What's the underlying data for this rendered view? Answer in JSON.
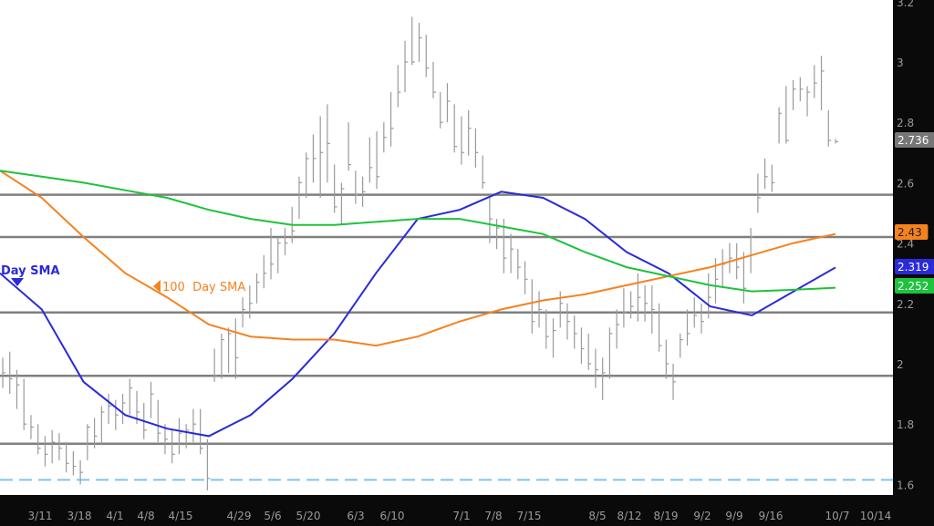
{
  "chart_data": {
    "type": "ohlc-bar",
    "title": "",
    "ylim": [
      1.55,
      3.2
    ],
    "y_ticks": [
      "3.2",
      "3",
      "2.8",
      "2.6",
      "2.4",
      "2.2",
      "2",
      "1.8",
      "1.6"
    ],
    "x_ticks": [
      "3/11",
      "3/18",
      "4/1",
      "4/8",
      "4/15",
      "4/29",
      "5/6",
      "5/20",
      "6/3",
      "6/10",
      "7/1",
      "7/8",
      "7/15",
      "8/5",
      "8/12",
      "8/19",
      "9/2",
      "9/9",
      "9/16",
      "10/7",
      "10/14"
    ],
    "grid": false,
    "bar_color": "#9a9a9a",
    "bars_hlc": [
      [
        2.02,
        1.92,
        1.97
      ],
      [
        2.04,
        1.9,
        1.95
      ],
      [
        1.98,
        1.85,
        1.93
      ],
      [
        1.95,
        1.78,
        1.8
      ],
      [
        1.83,
        1.75,
        1.79
      ],
      [
        1.8,
        1.7,
        1.72
      ],
      [
        1.76,
        1.66,
        1.7
      ],
      [
        1.78,
        1.67,
        1.74
      ],
      [
        1.77,
        1.68,
        1.72
      ],
      [
        1.74,
        1.64,
        1.67
      ],
      [
        1.71,
        1.63,
        1.66
      ],
      [
        1.68,
        1.6,
        1.64
      ],
      [
        1.8,
        1.68,
        1.79
      ],
      [
        1.82,
        1.72,
        1.76
      ],
      [
        1.86,
        1.73,
        1.84
      ],
      [
        1.9,
        1.8,
        1.86
      ],
      [
        1.88,
        1.78,
        1.83
      ],
      [
        1.9,
        1.8,
        1.87
      ],
      [
        1.95,
        1.83,
        1.92
      ],
      [
        1.91,
        1.8,
        1.84
      ],
      [
        1.87,
        1.75,
        1.78
      ],
      [
        1.94,
        1.82,
        1.9
      ],
      [
        1.88,
        1.74,
        1.77
      ],
      [
        1.8,
        1.7,
        1.75
      ],
      [
        1.78,
        1.67,
        1.7
      ],
      [
        1.82,
        1.7,
        1.77
      ],
      [
        1.8,
        1.72,
        1.78
      ],
      [
        1.85,
        1.74,
        1.8
      ],
      [
        1.85,
        1.7,
        1.72
      ],
      [
        1.75,
        1.58,
        1.62
      ],
      [
        2.05,
        1.94,
        1.96
      ],
      [
        2.1,
        1.95,
        2.08
      ],
      [
        2.12,
        1.97,
        2.1
      ],
      [
        2.15,
        1.95,
        2.02
      ],
      [
        2.22,
        2.12,
        2.18
      ],
      [
        2.26,
        2.15,
        2.2
      ],
      [
        2.3,
        2.2,
        2.27
      ],
      [
        2.36,
        2.25,
        2.3
      ],
      [
        2.45,
        2.28,
        2.33
      ],
      [
        2.42,
        2.3,
        2.4
      ],
      [
        2.45,
        2.36,
        2.4
      ],
      [
        2.52,
        2.4,
        2.44
      ],
      [
        2.62,
        2.48,
        2.6
      ],
      [
        2.7,
        2.55,
        2.68
      ],
      [
        2.76,
        2.6,
        2.68
      ],
      [
        2.82,
        2.55,
        2.7
      ],
      [
        2.86,
        2.6,
        2.73
      ],
      [
        2.66,
        2.5,
        2.52
      ],
      [
        2.6,
        2.46,
        2.58
      ],
      [
        2.8,
        2.64,
        2.66
      ],
      [
        2.64,
        2.53,
        2.56
      ],
      [
        2.62,
        2.52,
        2.57
      ],
      [
        2.75,
        2.6,
        2.65
      ],
      [
        2.77,
        2.58,
        2.62
      ],
      [
        2.8,
        2.7,
        2.75
      ],
      [
        2.9,
        2.72,
        2.78
      ],
      [
        2.99,
        2.85,
        2.9
      ],
      [
        3.07,
        2.9,
        3.0
      ],
      [
        3.15,
        2.99,
        3.0
      ],
      [
        3.13,
        3.0,
        3.08
      ],
      [
        3.09,
        2.95,
        2.98
      ],
      [
        3.0,
        2.88,
        2.9
      ],
      [
        2.9,
        2.78,
        2.8
      ],
      [
        2.93,
        2.8,
        2.87
      ],
      [
        2.86,
        2.7,
        2.72
      ],
      [
        2.82,
        2.66,
        2.7
      ],
      [
        2.84,
        2.69,
        2.78
      ],
      [
        2.78,
        2.65,
        2.7
      ],
      [
        2.69,
        2.58,
        2.6
      ],
      [
        2.56,
        2.4,
        2.48
      ],
      [
        2.48,
        2.38,
        2.45
      ],
      [
        2.48,
        2.3,
        2.35
      ],
      [
        2.43,
        2.3,
        2.38
      ],
      [
        2.38,
        2.28,
        2.32
      ],
      [
        2.34,
        2.23,
        2.28
      ],
      [
        2.28,
        2.1,
        2.14
      ],
      [
        2.24,
        2.12,
        2.18
      ],
      [
        2.18,
        2.05,
        2.09
      ],
      [
        2.15,
        2.02,
        2.11
      ],
      [
        2.24,
        2.12,
        2.2
      ],
      [
        2.2,
        2.08,
        2.14
      ],
      [
        2.16,
        2.05,
        2.1
      ],
      [
        2.12,
        2.0,
        2.05
      ],
      [
        2.1,
        1.98,
        2.0
      ],
      [
        2.05,
        1.92,
        1.98
      ],
      [
        2.02,
        1.88,
        1.97
      ],
      [
        2.12,
        1.95,
        2.1
      ],
      [
        2.18,
        2.05,
        2.13
      ],
      [
        2.25,
        2.12,
        2.17
      ],
      [
        2.24,
        2.15,
        2.19
      ],
      [
        2.3,
        2.14,
        2.22
      ],
      [
        2.26,
        2.14,
        2.2
      ],
      [
        2.26,
        2.1,
        2.18
      ],
      [
        2.2,
        2.04,
        2.06
      ],
      [
        2.08,
        1.95,
        2.0
      ],
      [
        2.0,
        1.88,
        1.94
      ],
      [
        2.1,
        2.02,
        2.08
      ],
      [
        2.18,
        2.06,
        2.1
      ],
      [
        2.22,
        2.12,
        2.16
      ],
      [
        2.2,
        2.1,
        2.14
      ],
      [
        2.3,
        2.15,
        2.22
      ],
      [
        2.35,
        2.2,
        2.28
      ],
      [
        2.38,
        2.25,
        2.33
      ],
      [
        2.4,
        2.3,
        2.35
      ],
      [
        2.4,
        2.28,
        2.32
      ],
      [
        2.37,
        2.2,
        2.25
      ],
      [
        2.45,
        2.3,
        2.42
      ],
      [
        2.63,
        2.5,
        2.55
      ],
      [
        2.68,
        2.58,
        2.62
      ],
      [
        2.66,
        2.57,
        2.6
      ],
      [
        2.85,
        2.73,
        2.83
      ],
      [
        2.92,
        2.73,
        2.74
      ],
      [
        2.94,
        2.84,
        2.91
      ],
      [
        2.95,
        2.87,
        2.91
      ],
      [
        2.92,
        2.82,
        2.9
      ],
      [
        2.99,
        2.88,
        2.93
      ],
      [
        3.02,
        2.84,
        2.97
      ],
      [
        2.84,
        2.72,
        2.74
      ],
      [
        2.745,
        2.73,
        2.736
      ]
    ],
    "series": [
      {
        "name": "Day SMA",
        "color": "#2a2ad8",
        "last": "2.319",
        "values": [
          2.3,
          2.18,
          1.94,
          1.83,
          1.785,
          1.76,
          1.83,
          1.95,
          2.1,
          2.3,
          2.48,
          2.51,
          2.57,
          2.55,
          2.48,
          2.37,
          2.3,
          2.19,
          2.16,
          2.24,
          2.319
        ]
      },
      {
        "name": "100  Day SMA",
        "color": "#f5821f",
        "last": "2.43",
        "values": [
          2.64,
          2.55,
          2.42,
          2.3,
          2.22,
          2.13,
          2.09,
          2.08,
          2.08,
          2.06,
          2.09,
          2.14,
          2.18,
          2.21,
          2.23,
          2.26,
          2.29,
          2.32,
          2.36,
          2.4,
          2.43
        ]
      },
      {
        "name": "",
        "color": "#1ec23c",
        "last": "2.252",
        "values": [
          2.64,
          2.62,
          2.6,
          2.575,
          2.55,
          2.51,
          2.48,
          2.46,
          2.46,
          2.47,
          2.48,
          2.48,
          2.455,
          2.43,
          2.37,
          2.32,
          2.29,
          2.26,
          2.24,
          2.245,
          2.252
        ]
      }
    ],
    "last_price": "2.736",
    "horizontal_levels": [
      2.56,
      2.42,
      2.17,
      1.96,
      1.735
    ],
    "dashed_level": 1.615,
    "level_color": "#808080",
    "dashed_color": "#7fc4f0"
  }
}
